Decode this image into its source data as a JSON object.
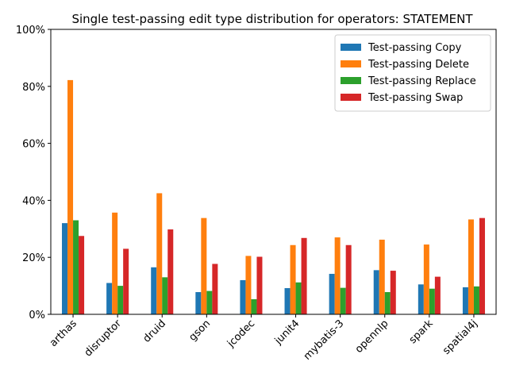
{
  "chart_data": {
    "type": "bar",
    "title": "Single test-passing edit type distribution for operators: STATEMENT",
    "xlabel": "",
    "ylabel": "",
    "ylim": [
      0,
      1
    ],
    "y_tick_format": "percent",
    "y_ticks": [
      0,
      0.2,
      0.4,
      0.6,
      0.8,
      1.0
    ],
    "y_tick_labels": [
      "0%",
      "20%",
      "40%",
      "60%",
      "80%",
      "100%"
    ],
    "grid": false,
    "legend_position": "top-right",
    "categories": [
      "arthas",
      "disruptor",
      "druid",
      "gson",
      "jcodec",
      "junit4",
      "mybatis-3",
      "opennlp",
      "spark",
      "spatial4j"
    ],
    "series": [
      {
        "name": "Test-passing Copy",
        "color": "#1f77b4",
        "values": [
          0.32,
          0.11,
          0.165,
          0.078,
          0.12,
          0.092,
          0.142,
          0.155,
          0.105,
          0.095
        ]
      },
      {
        "name": "Test-passing Delete",
        "color": "#ff7f0e",
        "values": [
          0.822,
          0.357,
          0.425,
          0.338,
          0.205,
          0.243,
          0.27,
          0.262,
          0.245,
          0.333
        ]
      },
      {
        "name": "Test-passing Replace",
        "color": "#2ca02c",
        "values": [
          0.33,
          0.1,
          0.13,
          0.082,
          0.053,
          0.112,
          0.093,
          0.078,
          0.09,
          0.098
        ]
      },
      {
        "name": "Test-passing Swap",
        "color": "#d62728",
        "values": [
          0.275,
          0.23,
          0.298,
          0.177,
          0.202,
          0.268,
          0.243,
          0.153,
          0.132,
          0.338
        ]
      }
    ]
  }
}
